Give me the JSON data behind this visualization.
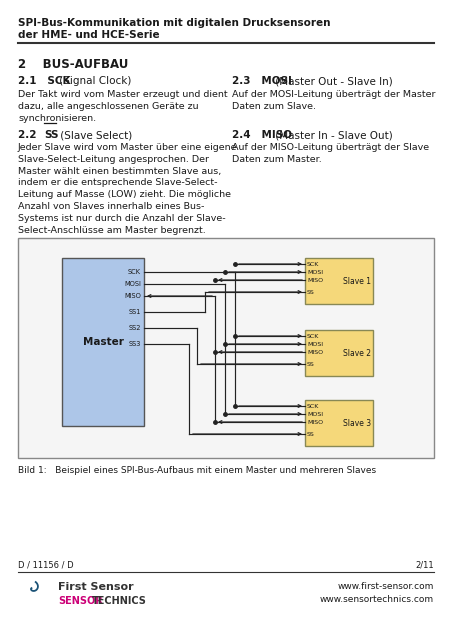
{
  "title_line1": "SPI-Bus-Kommunikation mit digitalen Drucksensoren",
  "title_line2": "der HME- und HCE-Serie",
  "section_title": "2    BUS-AUFBAU",
  "sec21_head": "2.1   SCK",
  "sec21_head_suffix": " (Signal Clock)",
  "sec21_body": "Der Takt wird vom Master erzeugt und dient\ndazu, alle angeschlossenen Geräte zu\nsynchronisieren.",
  "sec22_head": "2.2   ",
  "sec22_ss": "SS",
  "sec22_head_suffix": " (Slave Select)",
  "sec22_body": "Jeder Slave wird vom Master über eine eigene\nSlave-Select-Leitung angesprochen. Der\nMaster wählt einen bestimmten Slave aus,\nindem er die entsprechende Slave-Select-\nLeitung auf Masse (LOW) zieht. Die mögliche\nAnzahl von Slaves innerhalb eines Bus-\nSystems ist nur durch die Anzahl der Slave-\nSelect-Anschlüsse am Master begrenzt.",
  "sec23_head": "2.3   MOSI",
  "sec23_head_suffix": " (Master Out - Slave In)",
  "sec23_body": "Auf der MOSI-Leitung überträgt der Master\nDaten zum Slave.",
  "sec24_head": "2.4   MISO",
  "sec24_head_suffix": " (Master In - Slave Out)",
  "sec24_body": "Auf der MISO-Leitung überträgt der Slave\nDaten zum Master.",
  "fig_caption": "Bild 1:   Beispiel eines SPI-Bus-Aufbaus mit einem Master und mehreren Slaves",
  "footer_left": "D / 11156 / D",
  "footer_right": "2/11",
  "footer_url1": "www.first-sensor.com",
  "footer_url2": "www.sensortechnics.com",
  "footer_brand1": "First Sensor",
  "footer_brand2_magenta": "SENSOR",
  "footer_brand2_black": "TECHNICS",
  "bg_color": "#ffffff",
  "master_color": "#adc6e8",
  "slave_color": "#f5d87a",
  "text_color": "#1a1a1a",
  "line_color": "#222222"
}
